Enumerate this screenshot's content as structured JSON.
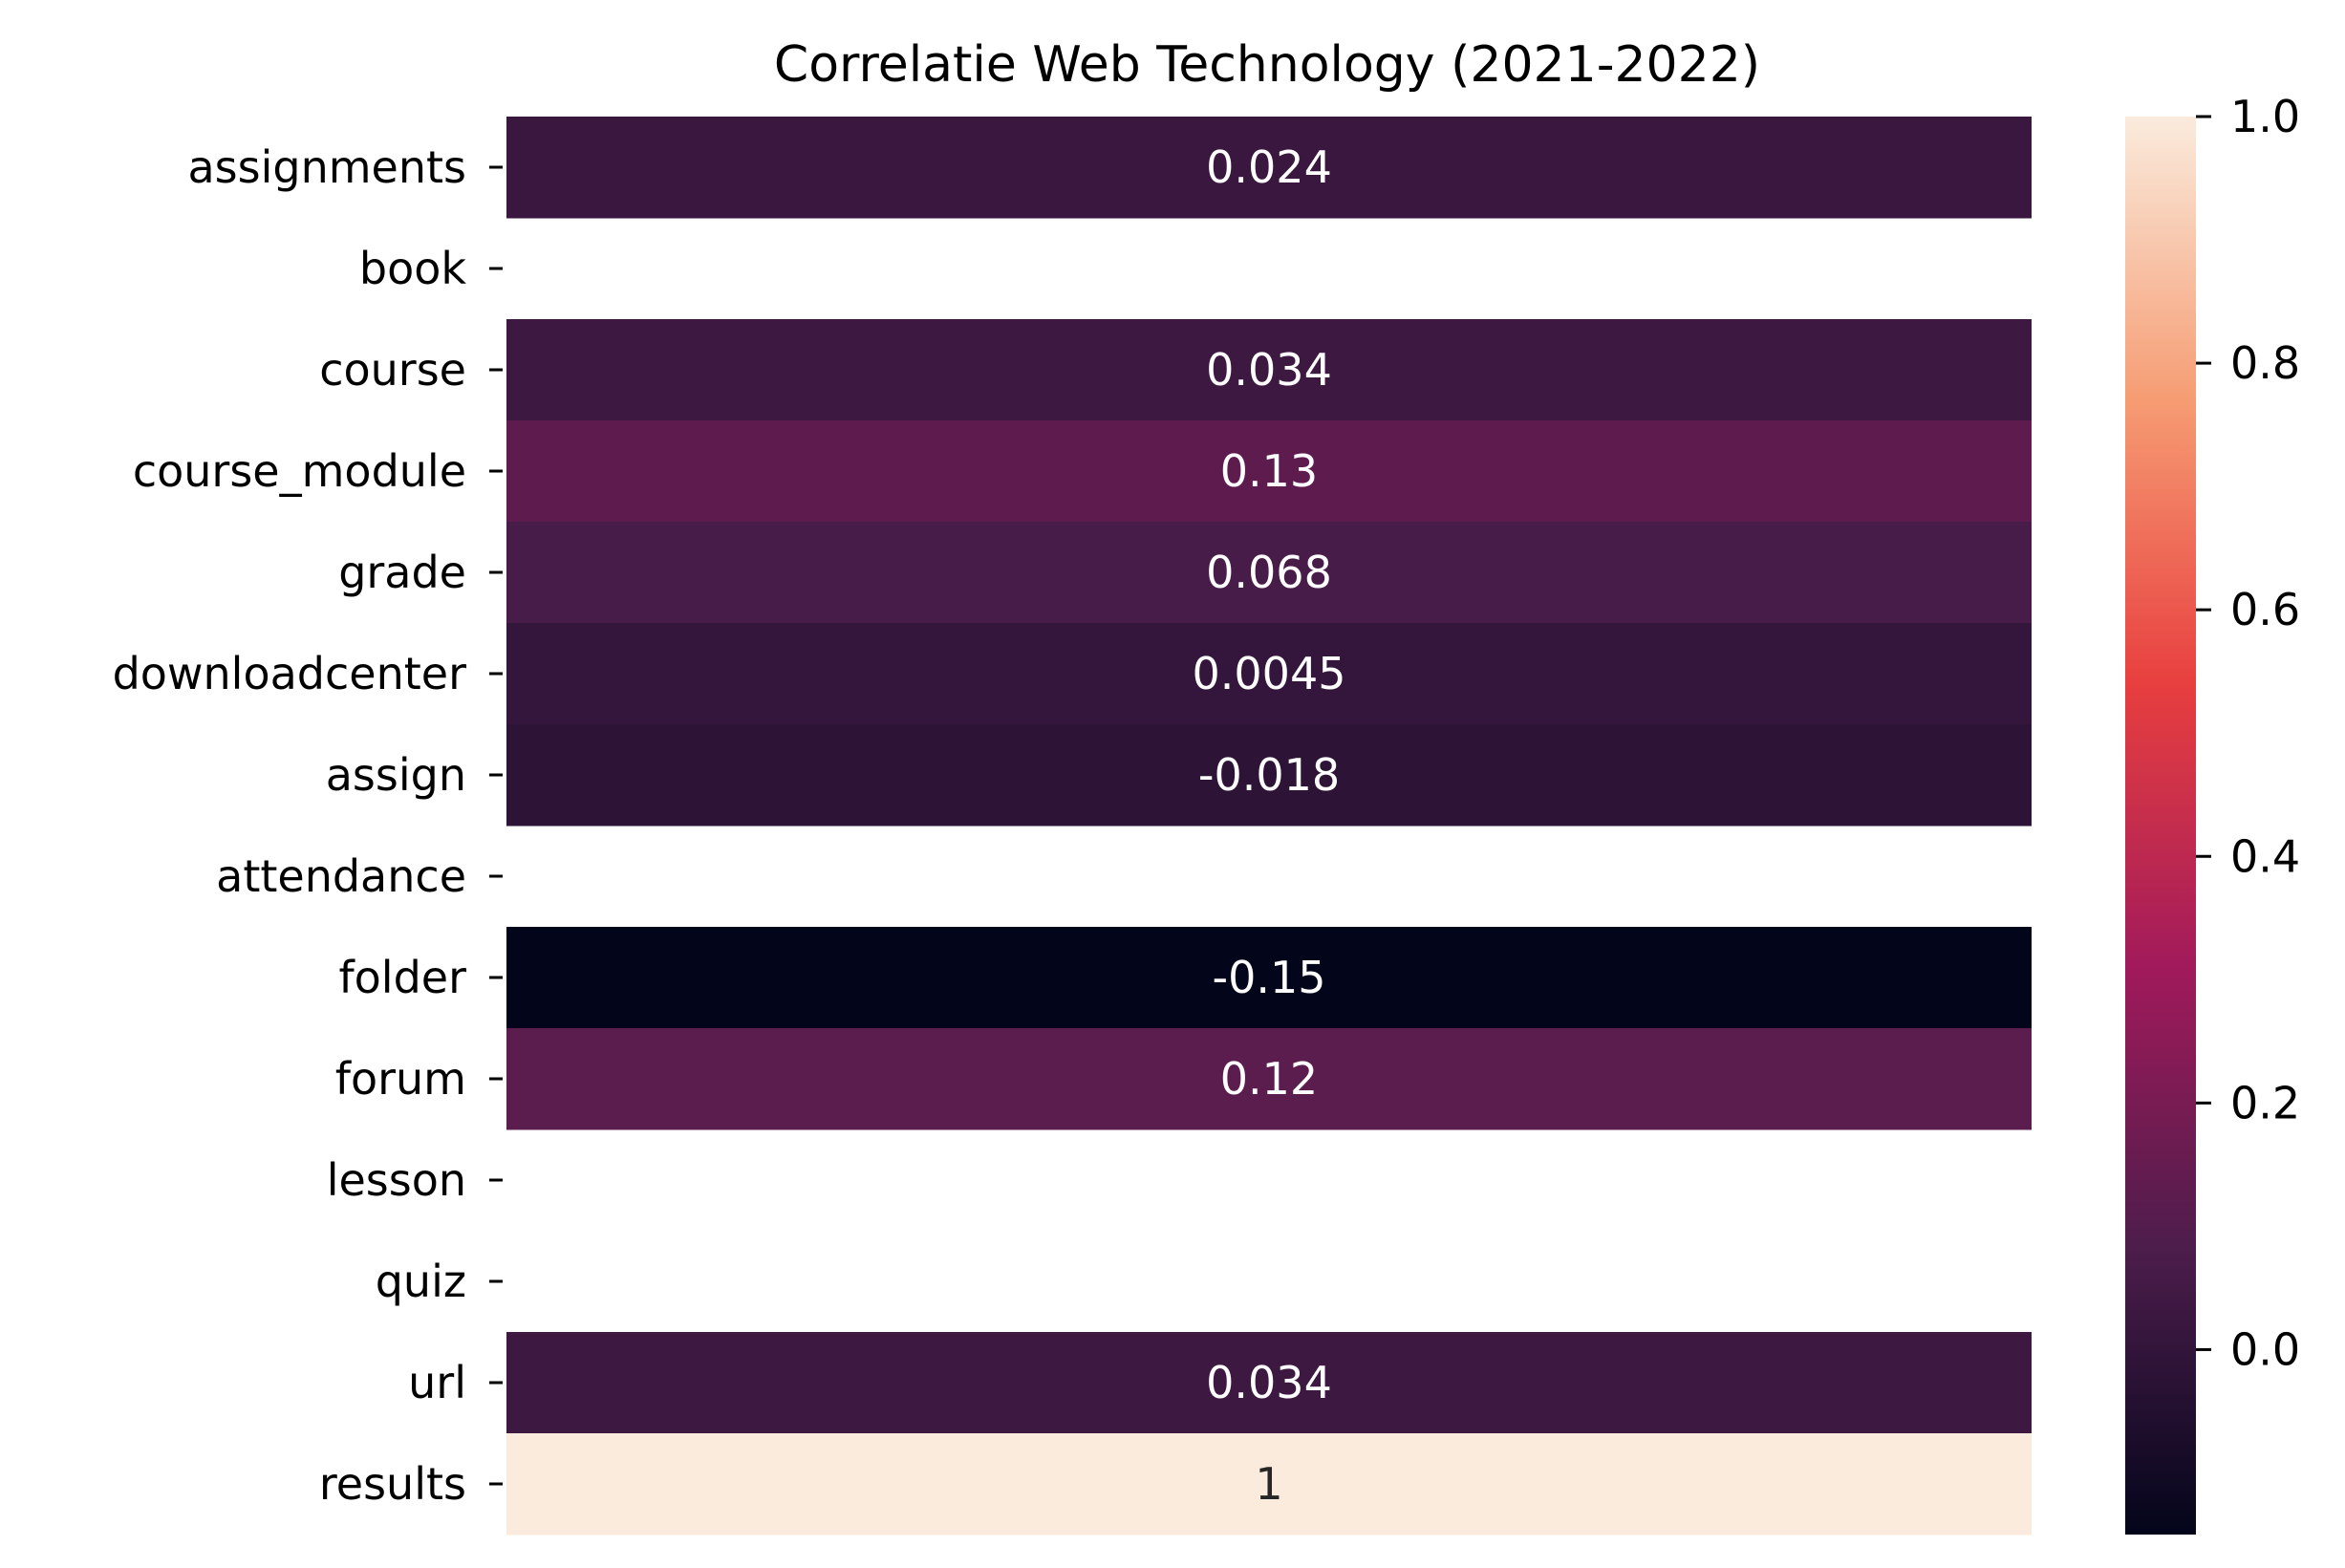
{
  "chart_data": {
    "type": "heatmap",
    "title": "Correlatie Web Technology (2021-2022)",
    "rows": [
      {
        "label": "assignments",
        "value": 0.024,
        "text": "0.024"
      },
      {
        "label": "book",
        "value": null,
        "text": ""
      },
      {
        "label": "course",
        "value": 0.034,
        "text": "0.034"
      },
      {
        "label": "course_module",
        "value": 0.13,
        "text": "0.13"
      },
      {
        "label": "grade",
        "value": 0.068,
        "text": "0.068"
      },
      {
        "label": "downloadcenter",
        "value": 0.0045,
        "text": "0.0045"
      },
      {
        "label": "assign",
        "value": -0.018,
        "text": "-0.018"
      },
      {
        "label": "attendance",
        "value": null,
        "text": ""
      },
      {
        "label": "folder",
        "value": -0.15,
        "text": "-0.15"
      },
      {
        "label": "forum",
        "value": 0.12,
        "text": "0.12"
      },
      {
        "label": "lesson",
        "value": null,
        "text": ""
      },
      {
        "label": "quiz",
        "value": null,
        "text": ""
      },
      {
        "label": "url",
        "value": 0.034,
        "text": "0.034"
      },
      {
        "label": "results",
        "value": 1,
        "text": "1"
      }
    ],
    "colorbar": {
      "min": -0.15,
      "max": 1.0,
      "ticks": [
        {
          "value": 0.0,
          "label": "0.0"
        },
        {
          "value": 0.2,
          "label": "0.2"
        },
        {
          "value": 0.4,
          "label": "0.4"
        },
        {
          "value": 0.6,
          "label": "0.6"
        },
        {
          "value": 0.8,
          "label": "0.8"
        },
        {
          "value": 1.0,
          "label": "1.0"
        }
      ],
      "colormap": "rocket"
    },
    "colormap_stops": [
      "#03051a",
      "#4c1d4b",
      "#a11a5b",
      "#e83f3f",
      "#f69c73",
      "#faebdd"
    ]
  }
}
